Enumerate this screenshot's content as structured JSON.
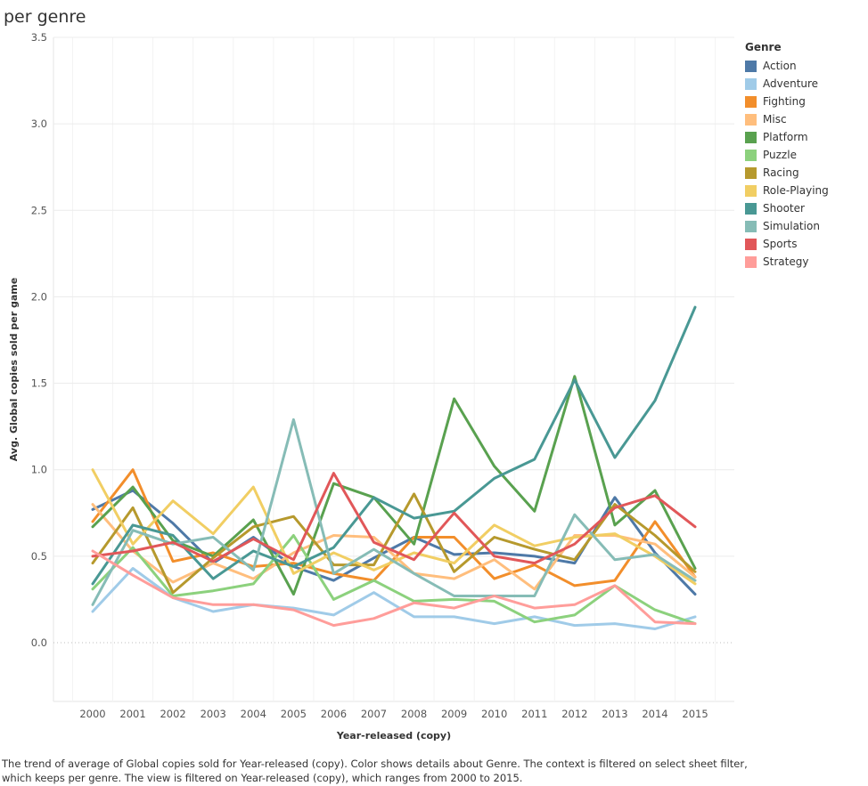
{
  "title": "per genre",
  "legend_title": "Genre",
  "caption_line1": "The trend of average of Global copies sold for Year-released (copy).  Color shows details about Genre. The context is filtered on select sheet filter,",
  "caption_line2": "which keeps per genre. The view is filtered on Year-released (copy), which ranges from 2000 to 2015.",
  "chart_data": {
    "type": "line",
    "xlabel": "Year-released (copy)",
    "ylabel": "Avg. Global copies sold per game",
    "x": [
      "2000",
      "2001",
      "2002",
      "2003",
      "2004",
      "2005",
      "2006",
      "2007",
      "2008",
      "2009",
      "2010",
      "2011",
      "2012",
      "2013",
      "2014",
      "2015"
    ],
    "ylim": [
      -0.33,
      3.5
    ],
    "yticks": [
      0.0,
      0.5,
      1.0,
      1.5,
      2.0,
      2.5,
      3.0,
      3.5
    ],
    "ytick_labels": [
      "0.0",
      "0.5",
      "1.0",
      "1.5",
      "2.0",
      "2.5",
      "3.0",
      "3.5"
    ],
    "grid": true,
    "legend_position": "right",
    "series": [
      {
        "name": "Action",
        "color": "#4e79a7",
        "values": [
          0.77,
          0.88,
          0.69,
          0.46,
          0.61,
          0.44,
          0.36,
          0.49,
          0.61,
          0.51,
          0.52,
          0.5,
          0.46,
          0.84,
          0.52,
          0.28
        ]
      },
      {
        "name": "Adventure",
        "color": "#a0cbe8",
        "values": [
          0.18,
          0.43,
          0.26,
          0.18,
          0.22,
          0.2,
          0.16,
          0.29,
          0.15,
          0.15,
          0.11,
          0.15,
          0.1,
          0.11,
          0.08,
          0.15
        ]
      },
      {
        "name": "Fighting",
        "color": "#f28e2b",
        "values": [
          0.7,
          1.0,
          0.47,
          0.52,
          0.44,
          0.46,
          0.4,
          0.36,
          0.61,
          0.61,
          0.37,
          0.45,
          0.33,
          0.36,
          0.7,
          0.38
        ]
      },
      {
        "name": "Misc",
        "color": "#ffbe7d",
        "values": [
          0.8,
          0.53,
          0.35,
          0.46,
          0.37,
          0.52,
          0.62,
          0.61,
          0.4,
          0.37,
          0.48,
          0.31,
          0.62,
          0.62,
          0.57,
          0.38
        ]
      },
      {
        "name": "Platform",
        "color": "#59a14f",
        "values": [
          0.67,
          0.9,
          0.59,
          0.5,
          0.71,
          0.28,
          0.92,
          0.84,
          0.57,
          1.41,
          1.02,
          0.76,
          1.54,
          0.68,
          0.88,
          0.43
        ]
      },
      {
        "name": "Puzzle",
        "color": "#8cd17d",
        "values": [
          0.31,
          0.55,
          0.27,
          0.3,
          0.34,
          0.62,
          0.25,
          0.36,
          0.24,
          0.25,
          0.24,
          0.12,
          0.16,
          0.33,
          0.19,
          0.11
        ]
      },
      {
        "name": "Racing",
        "color": "#b6992d",
        "values": [
          0.46,
          0.78,
          0.29,
          0.49,
          0.67,
          0.73,
          0.45,
          0.45,
          0.86,
          0.41,
          0.61,
          0.54,
          0.48,
          0.8,
          0.62,
          0.41
        ]
      },
      {
        "name": "Role-Playing",
        "color": "#f1ce63",
        "values": [
          1.0,
          0.57,
          0.82,
          0.63,
          0.9,
          0.4,
          0.52,
          0.42,
          0.52,
          0.46,
          0.68,
          0.56,
          0.61,
          0.63,
          0.5,
          0.34
        ]
      },
      {
        "name": "Shooter",
        "color": "#499894",
        "values": [
          0.34,
          0.68,
          0.62,
          0.37,
          0.53,
          0.44,
          0.55,
          0.84,
          0.72,
          0.76,
          0.95,
          1.06,
          1.52,
          1.07,
          1.4,
          1.94
        ]
      },
      {
        "name": "Simulation",
        "color": "#86bcb6",
        "values": [
          0.22,
          0.65,
          0.57,
          0.61,
          0.42,
          1.29,
          0.4,
          0.54,
          0.4,
          0.27,
          0.27,
          0.27,
          0.74,
          0.48,
          0.51,
          0.36
        ]
      },
      {
        "name": "Sports",
        "color": "#e15759",
        "values": [
          0.5,
          0.53,
          0.58,
          0.47,
          0.6,
          0.48,
          0.98,
          0.58,
          0.48,
          0.75,
          0.5,
          0.46,
          0.57,
          0.78,
          0.85,
          0.67
        ]
      },
      {
        "name": "Strategy",
        "color": "#ff9d9a",
        "values": [
          0.53,
          0.39,
          0.26,
          0.22,
          0.22,
          0.19,
          0.1,
          0.14,
          0.23,
          0.2,
          0.27,
          0.2,
          0.22,
          0.33,
          0.12,
          0.11
        ]
      }
    ]
  }
}
